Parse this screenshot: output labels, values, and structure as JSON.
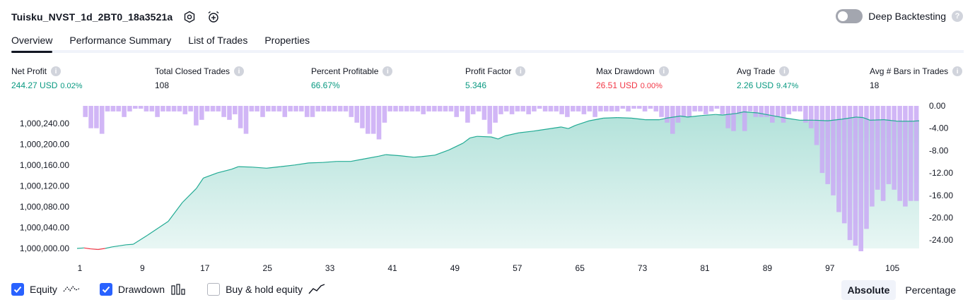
{
  "header": {
    "title": "Tuisku_NVST_1d_2BT0_18a3521a",
    "deep_backtesting_label": "Deep Backtesting"
  },
  "tabs": [
    {
      "label": "Overview",
      "active": true
    },
    {
      "label": "Performance Summary",
      "active": false
    },
    {
      "label": "List of Trades",
      "active": false
    },
    {
      "label": "Properties",
      "active": false
    }
  ],
  "metrics": {
    "net_profit": {
      "label": "Net Profit",
      "value": "244.27 USD",
      "pct": "0.02%"
    },
    "total_closed_trades": {
      "label": "Total Closed Trades",
      "value": "108"
    },
    "percent_profitable": {
      "label": "Percent Profitable",
      "value": "66.67%"
    },
    "profit_factor": {
      "label": "Profit Factor",
      "value": "5.346"
    },
    "max_drawdown": {
      "label": "Max Drawdown",
      "value": "26.51 USD",
      "pct": "0.00%"
    },
    "avg_trade": {
      "label": "Avg Trade",
      "value": "2.26 USD",
      "pct": "9.47%"
    },
    "avg_bars": {
      "label": "Avg # Bars in Trades",
      "value": "18"
    }
  },
  "colors": {
    "positive": "#089981",
    "negative": "#f23645",
    "equity_line": "#22ab94",
    "drawdown_bar": "#c9a9f5",
    "accent": "#2962ff"
  },
  "chart_data": {
    "type": "area",
    "x_ticks": [
      1,
      9,
      17,
      25,
      33,
      41,
      49,
      57,
      65,
      73,
      81,
      89,
      97,
      105
    ],
    "equity": {
      "name": "Equity",
      "ylim": [
        1000000,
        1000260
      ],
      "y_ticks": [
        "1,000,000.00",
        "1,000,040.00",
        "1,000,080.00",
        "1,000,120.00",
        "1,000,160.00",
        "1,000,200.00",
        "1,000,240.00"
      ],
      "points": [
        [
          1,
          1000000
        ],
        [
          2,
          1000001
        ],
        [
          3,
          999999
        ],
        [
          4,
          999998
        ],
        [
          5,
          1000000
        ],
        [
          6,
          1000003
        ],
        [
          7,
          1000005
        ],
        [
          8,
          1000007
        ],
        [
          9,
          1000008
        ],
        [
          11,
          1000025
        ],
        [
          14,
          1000052
        ],
        [
          16,
          1000088
        ],
        [
          18,
          1000115
        ],
        [
          19,
          1000135
        ],
        [
          21,
          1000145
        ],
        [
          23,
          1000152
        ],
        [
          24,
          1000157
        ],
        [
          26,
          1000156
        ],
        [
          28,
          1000154
        ],
        [
          30,
          1000157
        ],
        [
          32,
          1000160
        ],
        [
          34,
          1000164
        ],
        [
          36,
          1000165
        ],
        [
          38,
          1000167
        ],
        [
          40,
          1000167
        ],
        [
          42,
          1000172
        ],
        [
          44,
          1000177
        ],
        [
          45,
          1000180
        ],
        [
          47,
          1000178
        ],
        [
          49,
          1000175
        ],
        [
          50,
          1000176
        ],
        [
          52,
          1000179
        ],
        [
          54,
          1000189
        ],
        [
          56,
          1000202
        ],
        [
          57,
          1000212
        ],
        [
          58,
          1000215
        ],
        [
          60,
          1000214
        ],
        [
          61,
          1000210
        ],
        [
          62,
          1000216
        ],
        [
          64,
          1000222
        ],
        [
          66,
          1000225
        ],
        [
          68,
          1000229
        ],
        [
          70,
          1000233
        ],
        [
          71,
          1000230
        ],
        [
          72,
          1000236
        ],
        [
          74,
          1000245
        ],
        [
          76,
          1000250
        ],
        [
          78,
          1000251
        ],
        [
          80,
          1000250
        ],
        [
          82,
          1000247
        ],
        [
          84,
          1000247
        ],
        [
          85,
          1000250
        ],
        [
          87,
          1000254
        ],
        [
          88,
          1000252
        ],
        [
          90,
          1000255
        ],
        [
          92,
          1000257
        ],
        [
          93,
          1000256
        ],
        [
          95,
          1000259
        ],
        [
          96,
          1000262
        ],
        [
          98,
          1000260
        ],
        [
          100,
          1000255
        ],
        [
          102,
          1000250
        ],
        [
          104,
          1000246
        ],
        [
          106,
          1000246
        ],
        [
          108,
          1000245
        ],
        [
          110,
          1000248
        ],
        [
          112,
          1000252
        ],
        [
          113,
          1000251
        ],
        [
          114,
          1000246
        ],
        [
          116,
          1000247
        ],
        [
          118,
          1000244
        ],
        [
          119,
          1000244
        ],
        [
          120,
          1000244
        ],
        [
          121,
          1000245
        ]
      ]
    },
    "drawdown": {
      "name": "Drawdown",
      "ylim": [
        0,
        -26
      ],
      "y_ticks": [
        "0.00",
        "-4.00",
        "-8.00",
        "-12.00",
        "-16.00",
        "-20.00",
        "-24.00"
      ],
      "values": [
        0,
        -2,
        -4,
        -4,
        -5,
        -1,
        -1,
        -1,
        -2,
        -1,
        -0.5,
        -0.5,
        -1,
        -1,
        -2,
        -1,
        -1,
        -1,
        -1,
        -1.5,
        -1,
        -3.5,
        -2.5,
        -1,
        -1,
        -1,
        -2,
        -2.5,
        -1.5,
        -4,
        -5,
        -1,
        -1,
        -2,
        -1,
        -1,
        -1,
        -2,
        -1,
        -1,
        -1,
        -2,
        -2,
        -1,
        -1,
        -1,
        -1,
        -1,
        -1,
        -2,
        -3,
        -4,
        -5,
        -5,
        -6,
        -3,
        -1,
        -1,
        -1,
        -1,
        -1,
        -1,
        -1.5,
        -1,
        -1,
        -1,
        -1,
        -1,
        -2,
        -1,
        -3,
        -1.5,
        -1,
        -2.5,
        -5,
        -3,
        -1.5,
        -1,
        -1.5,
        -1,
        -1,
        -1.5,
        -1,
        -0.5,
        -1,
        -1,
        -1,
        -1.5,
        -2,
        -1,
        -1,
        -1.5,
        -1,
        -2,
        -1,
        -1,
        -1,
        -1,
        -0.5,
        -1,
        -0.5,
        -0.5,
        -1,
        -0.5,
        -1,
        -2,
        -3,
        -5,
        -3,
        -2,
        -2,
        -1,
        -1,
        -1.5,
        -1,
        -0.5,
        -1.5,
        -4,
        -4.5,
        -1.5,
        -4.5,
        -1,
        -2,
        -2,
        -2,
        -3,
        -2,
        -3,
        -1.5,
        -1,
        -1,
        -3,
        -4,
        -7,
        -12,
        -14,
        -16,
        -19,
        -21,
        -24,
        -25,
        -26,
        -22,
        -18,
        -15,
        -17,
        -14,
        -15,
        -17,
        -18,
        -17,
        -17
      ]
    },
    "legend_items": [
      {
        "label": "Equity",
        "checked": true
      },
      {
        "label": "Drawdown",
        "checked": true
      },
      {
        "label": "Buy & hold equity",
        "checked": false
      }
    ]
  },
  "scale_modes": [
    {
      "label": "Absolute",
      "active": true
    },
    {
      "label": "Percentage",
      "active": false
    }
  ]
}
